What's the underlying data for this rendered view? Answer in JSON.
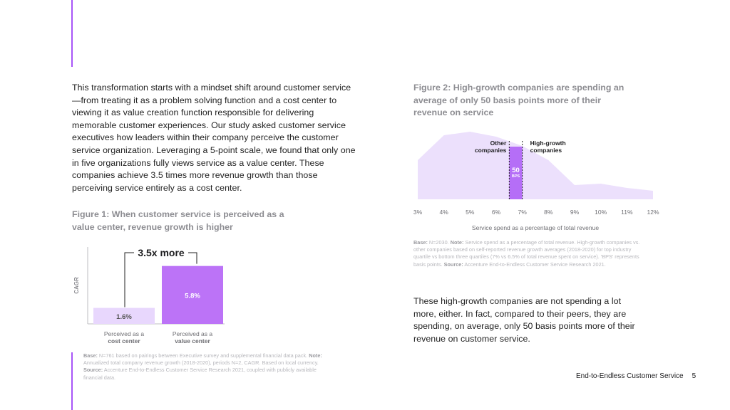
{
  "intro": {
    "text": "This transformation starts with a mindset shift around customer service—from treating it as a problem solving function and a cost center to viewing it as value creation function responsible for delivering memorable customer experiences. Our study asked customer service executives how leaders within their company perceive the customer service organization. Leveraging a 5-point scale, we found that only one in five organizations fully views service as a value center. These companies achieve 3.5 times more revenue growth than those perceiving service entirely as a cost center."
  },
  "figure1": {
    "title": "Figure 1: When customer service is perceived as a value center, revenue growth is higher",
    "footnote": {
      "base_label": "Base:",
      "base_text": " N=761 based on pairings between Executive survey and supplemental financial data pack. ",
      "note_label": "Note:",
      "note_text": " Annualized total company revenue growth (2018-2020), periods N=2, CAGR. Based on local currency. ",
      "source_label": "Source:",
      "source_text": " Accenture End-to-Endless Customer Service Research 2021, coupled with publicly available financial data."
    }
  },
  "figure2": {
    "title": "Figure 2: High-growth companies are spending an average of only 50 basis points more of their revenue on service",
    "footnote": {
      "base_label": "Base:",
      "base_text": " N=2030. ",
      "note_label": "Note:",
      "note_text": " Service spend as a percentage of total revenue. High-growth companies vs. other companies based on self-reported revenue growth averages (2018-2020) for top industry quartile vs bottom three quartiles (7% vs 6.5% of total revenue spent on service). 'BPS' represents basis points. ",
      "source_label": "Source:",
      "source_text": " Accenture End-to-Endless Customer Service Research 2021."
    }
  },
  "closing": {
    "text": "These high-growth companies are not spending a lot more, either. In fact, compared to their peers, they are spending, on average, only 50 basis points more of their revenue on customer service."
  },
  "footer": {
    "title": "End-to-Endless Customer Service",
    "page": "5"
  },
  "colors": {
    "accent": "#a855f7",
    "bar_light": "#e8d7fd",
    "bar_dark": "#bc73f7",
    "area_light": "#ece0fc",
    "band": "#b56ef7"
  },
  "chart_data": [
    {
      "type": "bar",
      "ylabel": "CAGR",
      "categories": [
        [
          "Perceived as a",
          "cost center"
        ],
        [
          "Perceived as a",
          "value center"
        ]
      ],
      "values": [
        1.6,
        5.8
      ],
      "value_labels": [
        "1.6%",
        "5.8%"
      ],
      "ylim": [
        0,
        7.7
      ],
      "annotation": "3.5x more"
    },
    {
      "type": "area",
      "xlabel": "Service spend as a percentage of total revenue",
      "x_ticks": [
        3,
        4,
        5,
        6,
        7,
        8,
        9,
        10,
        11,
        12
      ],
      "x_tick_labels": [
        "3%",
        "4%",
        "5%",
        "6%",
        "7%",
        "8%",
        "9%",
        "10%",
        "11%",
        "12%"
      ],
      "xlim": [
        3,
        12
      ],
      "x": [
        3,
        4,
        5,
        6,
        7,
        8,
        9,
        10,
        11,
        12
      ],
      "y": [
        0.55,
        0.9,
        0.95,
        0.88,
        0.75,
        0.55,
        0.2,
        0.22,
        0.16,
        0.12
      ],
      "ylim": [
        0,
        1
      ],
      "band": {
        "x_start": 6.5,
        "x_end": 7.0,
        "label": "50",
        "sublabel": "BPS"
      },
      "annotations": [
        {
          "lines": [
            "Other",
            "companies"
          ],
          "x": 6.5
        },
        {
          "lines": [
            "High-growth",
            "companies"
          ],
          "x": 7.0
        }
      ]
    }
  ]
}
